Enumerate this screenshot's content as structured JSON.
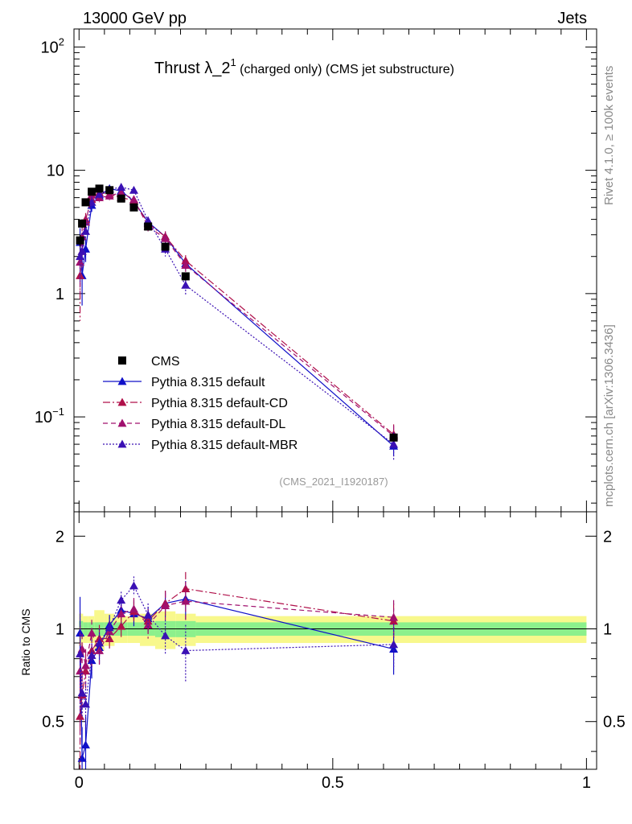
{
  "header": {
    "left": "13000 GeV pp",
    "right": "Jets"
  },
  "side_labels": {
    "rivet": "Rivet 4.1.0, ≥ 100k events",
    "mcplots": "mcplots.cern.ch [arXiv:1306.3436]"
  },
  "colors": {
    "cms": "#000000",
    "default": "#1010c8",
    "cd": "#b0104a",
    "dl": "#a0106e",
    "mbr": "#3a10b4",
    "band_inner": "#8cf08c",
    "band_outer": "#f8f88c"
  },
  "chart_data": [
    {
      "type": "line",
      "panel": "main",
      "title_main": "Thrust λ_2",
      "title_sup": "1",
      "title_rest": " (charged only) (CMS jet substructure)",
      "analysis": "(CMS_2021_I1920187)",
      "yscale": "log",
      "xlim": [
        -0.01,
        1.02
      ],
      "ylim": [
        0.017,
        140
      ],
      "yticks": [
        {
          "v": 0.1,
          "base": "10",
          "exp": "−1"
        },
        {
          "v": 1,
          "base": "1",
          "exp": ""
        },
        {
          "v": 10,
          "base": "10",
          "exp": ""
        },
        {
          "v": 100,
          "base": "10",
          "exp": "2"
        }
      ],
      "legend_position": "bottom-left",
      "x": [
        0.002,
        0.006,
        0.013,
        0.025,
        0.04,
        0.06,
        0.083,
        0.108,
        0.136,
        0.17,
        0.21,
        0.62
      ],
      "series": [
        {
          "name": "CMS",
          "style": "data",
          "marker": "square",
          "values": [
            2.7,
            3.7,
            5.5,
            6.7,
            7.1,
            6.9,
            5.9,
            5.0,
            3.5,
            2.4,
            1.38,
            0.068
          ],
          "errors": [
            0.3,
            0.3,
            0.3,
            0.4,
            0.4,
            0.3,
            0.3,
            0.3,
            0.2,
            0.15,
            0.1,
            0.004
          ]
        },
        {
          "name": "Pythia 8.315 default",
          "style": "solid",
          "marker": "triangle",
          "values": [
            2.6,
            1.4,
            2.3,
            5.2,
            6.2,
            7.1,
            6.8,
            5.6,
            3.8,
            2.9,
            1.75,
            0.058
          ],
          "errors": [
            0.8,
            0.6,
            0.5,
            0.6,
            0.5,
            0.5,
            0.5,
            0.4,
            0.3,
            0.3,
            0.2,
            0.01
          ]
        },
        {
          "name": "Pythia 8.315 default-CD",
          "style": "dashdot",
          "marker": "triangle",
          "values": [
            1.4,
            2.2,
            4.0,
            5.8,
            6.6,
            6.4,
            6.0,
            5.7,
            3.7,
            2.9,
            1.85,
            0.072
          ],
          "errors": [
            0.8,
            0.6,
            0.5,
            0.6,
            0.5,
            0.5,
            0.5,
            0.4,
            0.3,
            0.3,
            0.2,
            0.015
          ]
        },
        {
          "name": "Pythia 8.315 default-DL",
          "style": "dashed",
          "marker": "triangle",
          "values": [
            1.8,
            2.9,
            3.8,
            6.3,
            6.0,
            6.2,
            6.6,
            5.8,
            3.5,
            2.8,
            1.7,
            0.07
          ],
          "errors": [
            0.8,
            0.6,
            0.5,
            0.6,
            0.5,
            0.5,
            0.5,
            0.4,
            0.3,
            0.3,
            0.2,
            0.015
          ]
        },
        {
          "name": "Pythia 8.315 default-MBR",
          "style": "dotted",
          "marker": "triangle",
          "values": [
            2.0,
            2.2,
            3.2,
            5.5,
            6.4,
            7.0,
            7.3,
            6.9,
            3.9,
            2.3,
            1.17,
            0.06
          ],
          "errors": [
            0.8,
            0.6,
            0.5,
            0.6,
            0.5,
            0.5,
            0.5,
            0.4,
            0.3,
            0.3,
            0.2,
            0.015
          ]
        }
      ]
    },
    {
      "type": "line",
      "panel": "ratio",
      "ylabel": "Ratio to CMS",
      "yscale": "log",
      "xlim": [
        -0.01,
        1.02
      ],
      "ylim": [
        0.35,
        2.4
      ],
      "yticks": [
        0.5,
        1,
        2
      ],
      "yticklabels": [
        "0.5",
        "1",
        "2"
      ],
      "xticks": [
        0,
        0.5,
        1
      ],
      "xticklabels": [
        "0",
        "0.5",
        "1"
      ],
      "bin_edges": [
        0.0,
        0.004,
        0.008,
        0.018,
        0.03,
        0.05,
        0.07,
        0.095,
        0.12,
        0.15,
        0.19,
        0.23,
        1.0
      ],
      "band_inner": [
        0.06,
        0.06,
        0.05,
        0.05,
        0.05,
        0.05,
        0.05,
        0.05,
        0.05,
        0.06,
        0.06,
        0.05
      ],
      "band_outer": [
        0.12,
        0.12,
        0.1,
        0.1,
        0.15,
        0.12,
        0.1,
        0.1,
        0.12,
        0.14,
        0.12,
        0.1
      ],
      "x": [
        0.002,
        0.006,
        0.013,
        0.025,
        0.04,
        0.06,
        0.083,
        0.108,
        0.136,
        0.17,
        0.21,
        0.62
      ],
      "series": [
        {
          "name": "Pythia 8.315 default",
          "values": [
            0.97,
            0.38,
            0.42,
            0.79,
            0.87,
            1.03,
            1.15,
            1.12,
            1.08,
            1.21,
            1.25,
            0.86
          ],
          "errors": [
            0.3,
            0.1,
            0.1,
            0.1,
            0.1,
            0.08,
            0.08,
            0.1,
            0.1,
            0.12,
            0.18,
            0.15
          ]
        },
        {
          "name": "Pythia 8.315 default-CD",
          "values": [
            0.52,
            0.61,
            0.73,
            0.85,
            0.93,
            0.93,
            1.02,
            1.14,
            1.06,
            1.21,
            1.35,
            1.06
          ],
          "errors": [
            0.3,
            0.1,
            0.1,
            0.1,
            0.1,
            0.08,
            0.08,
            0.1,
            0.1,
            0.12,
            0.18,
            0.15
          ]
        },
        {
          "name": "Pythia 8.315 default-DL",
          "values": [
            0.73,
            0.86,
            0.76,
            0.97,
            0.85,
            0.98,
            1.12,
            1.16,
            1.03,
            1.19,
            1.23,
            1.09
          ],
          "errors": [
            0.3,
            0.1,
            0.1,
            0.1,
            0.1,
            0.08,
            0.08,
            0.1,
            0.1,
            0.12,
            0.18,
            0.15
          ]
        },
        {
          "name": "Pythia 8.315 default-MBR",
          "values": [
            0.83,
            0.62,
            0.57,
            0.82,
            0.9,
            1.01,
            1.24,
            1.38,
            1.11,
            0.95,
            0.85,
            0.89
          ],
          "errors": [
            0.3,
            0.1,
            0.1,
            0.1,
            0.1,
            0.08,
            0.08,
            0.1,
            0.1,
            0.12,
            0.18,
            0.15
          ]
        }
      ]
    }
  ]
}
